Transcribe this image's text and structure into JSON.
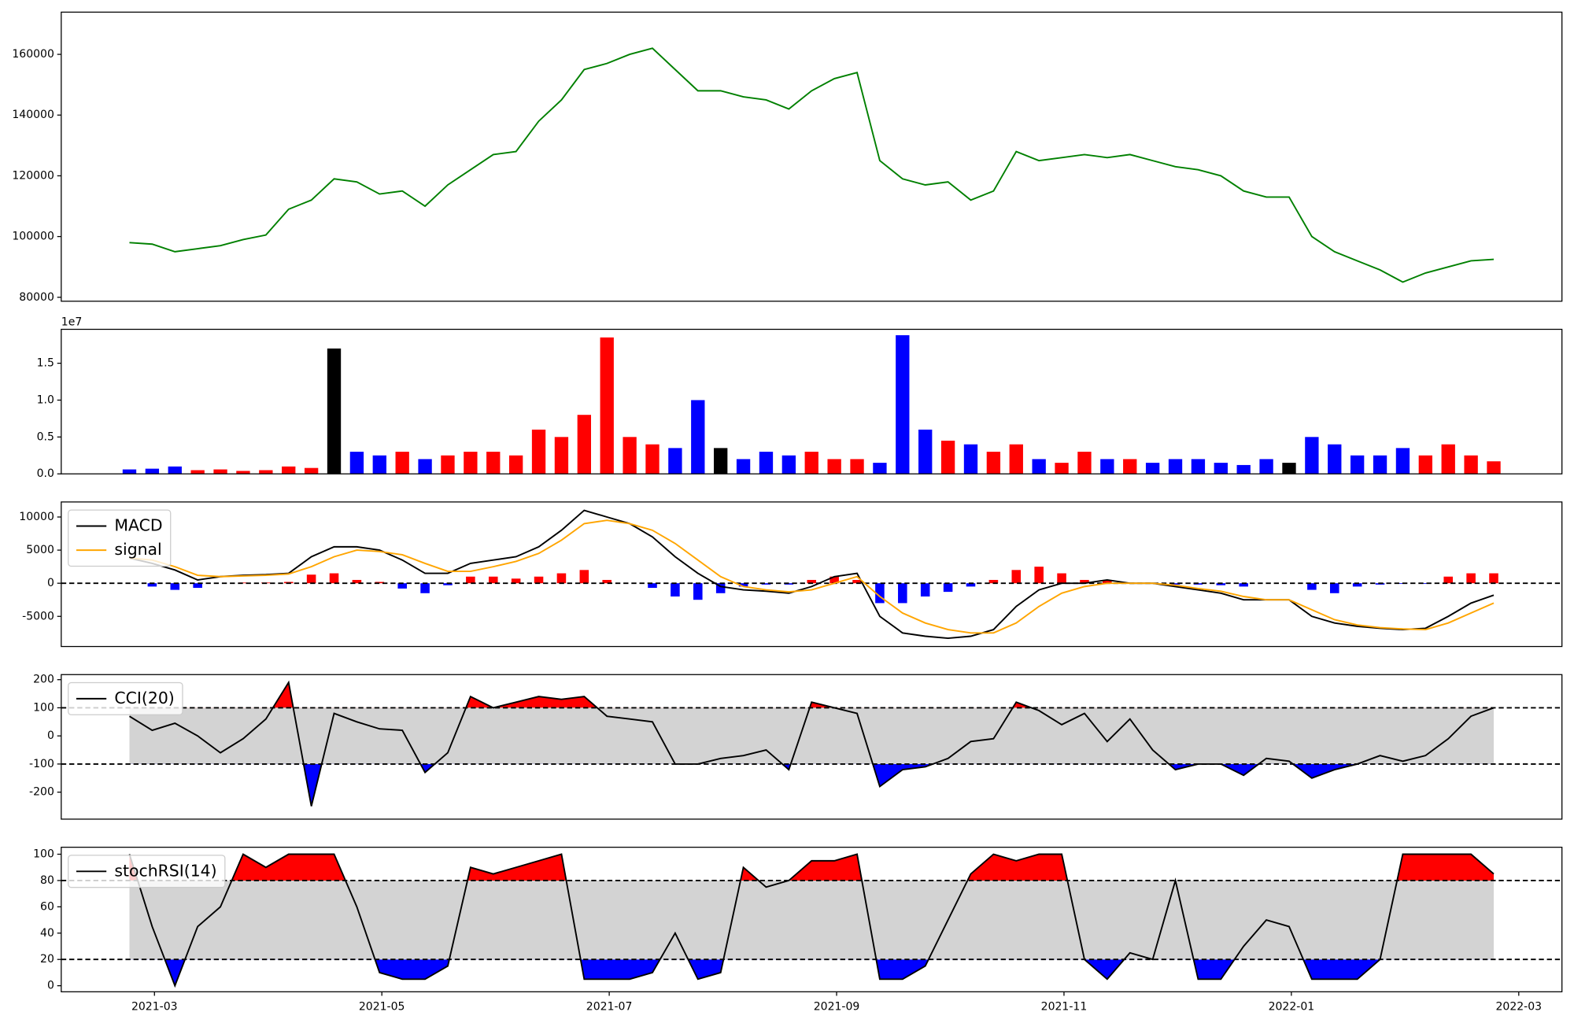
{
  "chart_data": [
    {
      "type": "line",
      "x": [
        2.78,
        2.98,
        3.18,
        3.38,
        3.58,
        3.78,
        3.98,
        4.18,
        4.38,
        4.58,
        4.78,
        4.98,
        5.18,
        5.38,
        5.58,
        5.78,
        5.98,
        6.18,
        6.38,
        6.58,
        6.78,
        6.98,
        7.18,
        7.38,
        7.58,
        7.78,
        7.98,
        8.18,
        8.38,
        8.58,
        8.78,
        8.98,
        9.18,
        9.38,
        9.58,
        9.78,
        9.98,
        10.18,
        10.38,
        10.58,
        10.78,
        10.98,
        11.18,
        11.38,
        11.58,
        11.78,
        11.98,
        12.18,
        12.38,
        12.58,
        12.78,
        12.98,
        13.18,
        13.38,
        13.58,
        13.78,
        13.98,
        14.18,
        14.38,
        14.58,
        14.78
      ],
      "series": [
        {
          "color": "green",
          "values": [
            98000,
            97500,
            95000,
            96000,
            97000,
            99000,
            100500,
            109000,
            112000,
            119000,
            118000,
            114000,
            115000,
            110000,
            117000,
            122000,
            127000,
            128000,
            138000,
            145000,
            155000,
            157000,
            160000,
            162000,
            155000,
            148000,
            148000,
            146000,
            145000,
            142000,
            148000,
            152000,
            154000,
            125000,
            119000,
            117000,
            118000,
            112000,
            115000,
            128000,
            125000,
            126000,
            127000,
            126000,
            127000,
            125000,
            123000,
            122000,
            120000,
            115000,
            113000,
            113000,
            100000,
            95000,
            92000,
            89000,
            85000,
            88000,
            90000,
            92000,
            92500
          ]
        }
      ],
      "xlim": [
        2.18,
        15.38
      ],
      "ylim": [
        78700,
        173900
      ],
      "yticks": [
        80000,
        100000,
        120000,
        140000,
        160000
      ]
    },
    {
      "type": "bar",
      "x": [
        2.78,
        2.98,
        3.18,
        3.38,
        3.58,
        3.78,
        3.98,
        4.18,
        4.38,
        4.58,
        4.78,
        4.98,
        5.18,
        5.38,
        5.58,
        5.78,
        5.98,
        6.18,
        6.38,
        6.58,
        6.78,
        6.98,
        7.18,
        7.38,
        7.58,
        7.78,
        7.98,
        8.18,
        8.38,
        8.58,
        8.78,
        8.98,
        9.18,
        9.38,
        9.58,
        9.78,
        9.98,
        10.18,
        10.38,
        10.58,
        10.78,
        10.98,
        11.18,
        11.38,
        11.58,
        11.78,
        11.98,
        12.18,
        12.38,
        12.58,
        12.78,
        12.98,
        13.18,
        13.38,
        13.58,
        13.78,
        13.98,
        14.18,
        14.38,
        14.58,
        14.78
      ],
      "values": [
        0.06,
        0.07,
        0.1,
        0.05,
        0.06,
        0.04,
        0.05,
        0.1,
        0.08,
        1.7,
        0.3,
        0.25,
        0.3,
        0.2,
        0.25,
        0.3,
        0.3,
        0.25,
        0.6,
        0.5,
        0.8,
        1.85,
        0.5,
        0.4,
        0.35,
        1.0,
        0.35,
        0.2,
        0.3,
        0.25,
        0.3,
        0.2,
        0.2,
        0.15,
        1.88,
        0.6,
        0.45,
        0.4,
        0.3,
        0.4,
        0.2,
        0.15,
        0.3,
        0.2,
        0.2,
        0.15,
        0.2,
        0.2,
        0.15,
        0.12,
        0.2,
        0.15,
        0.5,
        0.4,
        0.25,
        0.25,
        0.35,
        0.25,
        0.4,
        0.25,
        0.17
      ],
      "colors": [
        "blue",
        "blue",
        "blue",
        "red",
        "red",
        "red",
        "red",
        "red",
        "red",
        "black",
        "blue",
        "blue",
        "red",
        "blue",
        "red",
        "red",
        "red",
        "red",
        "red",
        "red",
        "red",
        "red",
        "red",
        "red",
        "blue",
        "blue",
        "black",
        "blue",
        "blue",
        "blue",
        "red",
        "red",
        "red",
        "blue",
        "blue",
        "blue",
        "red",
        "blue",
        "red",
        "red",
        "blue",
        "red",
        "red",
        "blue",
        "red",
        "blue",
        "blue",
        "blue",
        "blue",
        "blue",
        "blue",
        "black",
        "blue",
        "blue",
        "blue",
        "blue",
        "blue",
        "red",
        "red",
        "red",
        "red"
      ],
      "xlim": [
        2.18,
        15.38
      ],
      "ylim": [
        0,
        1.96
      ],
      "yticks": [
        {
          "value": 0,
          "label": "0.0"
        },
        0.5,
        {
          "value": 1,
          "label": "1.0"
        },
        1.5
      ],
      "y_offset_label": "1e7"
    },
    {
      "type": "macd",
      "x": [
        2.78,
        2.98,
        3.18,
        3.38,
        3.58,
        3.78,
        3.98,
        4.18,
        4.38,
        4.58,
        4.78,
        4.98,
        5.18,
        5.38,
        5.58,
        5.78,
        5.98,
        6.18,
        6.38,
        6.58,
        6.78,
        6.98,
        7.18,
        7.38,
        7.58,
        7.78,
        7.98,
        8.18,
        8.38,
        8.58,
        8.78,
        8.98,
        9.18,
        9.38,
        9.58,
        9.78,
        9.98,
        10.18,
        10.38,
        10.58,
        10.78,
        10.98,
        11.18,
        11.38,
        11.58,
        11.78,
        11.98,
        12.18,
        12.38,
        12.58,
        12.78,
        12.98,
        13.18,
        13.38,
        13.58,
        13.78,
        13.98,
        14.18,
        14.38,
        14.58,
        14.78
      ],
      "series": [
        {
          "name": "MACD",
          "color": "black",
          "values": [
            3800,
            3000,
            2000,
            500,
            1000,
            1200,
            1300,
            1500,
            4000,
            5500,
            5500,
            5000,
            3500,
            1500,
            1500,
            3000,
            3500,
            4000,
            5500,
            8000,
            11000,
            10000,
            9000,
            7000,
            4000,
            1500,
            -500,
            -1000,
            -1200,
            -1500,
            -500,
            1000,
            1500,
            -5000,
            -7500,
            -8000,
            -8300,
            -8000,
            -7000,
            -3500,
            -1000,
            0,
            0,
            500,
            0,
            0,
            -500,
            -1000,
            -1500,
            -2500,
            -2500,
            -2500,
            -5000,
            -6000,
            -6500,
            -6800,
            -7000,
            -6800,
            -5000,
            -3000,
            -1800
          ]
        },
        {
          "name": "signal",
          "color": "orange",
          "values": [
            3800,
            3500,
            2500,
            1200,
            1000,
            1100,
            1200,
            1400,
            2500,
            4000,
            5000,
            4800,
            4300,
            3000,
            1800,
            1800,
            2500,
            3300,
            4500,
            6500,
            9000,
            9500,
            9000,
            8000,
            6000,
            3500,
            1000,
            -500,
            -1000,
            -1300,
            -1000,
            0,
            1000,
            -2000,
            -4500,
            -6000,
            -7000,
            -7500,
            -7500,
            -6000,
            -3500,
            -1500,
            -500,
            0,
            0,
            0,
            -300,
            -800,
            -1200,
            -2000,
            -2500,
            -2500,
            -4000,
            -5500,
            -6300,
            -6700,
            -6900,
            -7000,
            -6000,
            -4500,
            -3000
          ]
        }
      ],
      "histogram": {
        "positive_color": "red",
        "negative_color": "blue",
        "values": [
          0,
          -500,
          -1000,
          -700,
          0,
          100,
          100,
          200,
          1300,
          1500,
          500,
          200,
          -800,
          -1500,
          -300,
          1000,
          1000,
          700,
          1000,
          1500,
          2000,
          500,
          0,
          -700,
          -2000,
          -2500,
          -1500,
          -500,
          -200,
          -200,
          500,
          1000,
          500,
          -3000,
          -3000,
          -2000,
          -1300,
          -500,
          500,
          2000,
          2500,
          1500,
          500,
          500,
          0,
          0,
          -200,
          -200,
          -300,
          -500,
          0,
          0,
          -1000,
          -1500,
          -500,
          -200,
          -100,
          -100,
          1000,
          1500,
          1500
        ]
      },
      "hlines": [
        0
      ],
      "xlim": [
        2.18,
        15.38
      ],
      "ylim": [
        -9550,
        12270
      ],
      "yticks": [
        -5000,
        0,
        5000,
        10000
      ],
      "legend": "upper left"
    },
    {
      "type": "band",
      "x": [
        2.78,
        2.98,
        3.18,
        3.38,
        3.58,
        3.78,
        3.98,
        4.18,
        4.38,
        4.58,
        4.78,
        4.98,
        5.18,
        5.38,
        5.58,
        5.78,
        5.98,
        6.18,
        6.38,
        6.58,
        6.78,
        6.98,
        7.18,
        7.38,
        7.58,
        7.78,
        7.98,
        8.18,
        8.38,
        8.58,
        8.78,
        8.98,
        9.18,
        9.38,
        9.58,
        9.78,
        9.98,
        10.18,
        10.38,
        10.58,
        10.78,
        10.98,
        11.18,
        11.38,
        11.58,
        11.78,
        11.98,
        12.18,
        12.38,
        12.58,
        12.78,
        12.98,
        13.18,
        13.38,
        13.58,
        13.78,
        13.98,
        14.18,
        14.38,
        14.58,
        14.78
      ],
      "series": [
        {
          "name": "CCI(20)",
          "color": "black",
          "values": [
            70,
            20,
            45,
            0,
            -60,
            -10,
            60,
            190,
            -250,
            80,
            50,
            25,
            20,
            -130,
            -60,
            140,
            100,
            120,
            140,
            130,
            140,
            70,
            60,
            50,
            -100,
            -100,
            -80,
            -70,
            -50,
            -120,
            120,
            100,
            80,
            -180,
            -120,
            -110,
            -80,
            -20,
            -10,
            120,
            90,
            40,
            80,
            -20,
            60,
            -50,
            -120,
            -100,
            -100,
            -140,
            -80,
            -90,
            -150,
            -120,
            -100,
            -70,
            -90,
            -70,
            -10,
            70,
            100
          ]
        }
      ],
      "thresholds": [
        -100,
        100
      ],
      "band_color": "lightgray",
      "upper_fill": "red",
      "lower_fill": "blue",
      "xlim": [
        2.18,
        15.38
      ],
      "ylim": [
        -296,
        218
      ],
      "yticks": [
        -200,
        -100,
        0,
        100,
        200
      ],
      "legend": "upper left"
    },
    {
      "type": "band",
      "x": [
        2.78,
        2.98,
        3.18,
        3.38,
        3.58,
        3.78,
        3.98,
        4.18,
        4.38,
        4.58,
        4.78,
        4.98,
        5.18,
        5.38,
        5.58,
        5.78,
        5.98,
        6.18,
        6.38,
        6.58,
        6.78,
        6.98,
        7.18,
        7.38,
        7.58,
        7.78,
        7.98,
        8.18,
        8.38,
        8.58,
        8.78,
        8.98,
        9.18,
        9.38,
        9.58,
        9.78,
        9.98,
        10.18,
        10.38,
        10.58,
        10.78,
        10.98,
        11.18,
        11.38,
        11.58,
        11.78,
        11.98,
        12.18,
        12.38,
        12.58,
        12.78,
        12.98,
        13.18,
        13.38,
        13.58,
        13.78,
        13.98,
        14.18,
        14.38,
        14.58,
        14.78
      ],
      "series": [
        {
          "name": "stochRSI(14)",
          "color": "black",
          "values": [
            100,
            45,
            0,
            45,
            60,
            100,
            90,
            100,
            100,
            100,
            60,
            10,
            5,
            5,
            15,
            90,
            85,
            90,
            95,
            100,
            5,
            5,
            5,
            10,
            40,
            5,
            10,
            90,
            75,
            80,
            95,
            95,
            100,
            5,
            5,
            15,
            50,
            85,
            100,
            95,
            100,
            100,
            20,
            5,
            25,
            20,
            80,
            5,
            5,
            30,
            50,
            45,
            5,
            5,
            5,
            20,
            100,
            100,
            100,
            100,
            85
          ]
        }
      ],
      "thresholds": [
        20,
        80
      ],
      "band_color": "lightgray",
      "upper_fill": "red",
      "lower_fill": "blue",
      "xlim": [
        2.18,
        15.38
      ],
      "ylim": [
        -4.6,
        105.3
      ],
      "yticks": [
        0,
        20,
        40,
        60,
        80,
        100
      ],
      "legend": "upper left",
      "xticks": [
        {
          "value": 3,
          "label": "2021-03"
        },
        {
          "value": 5,
          "label": "2021-05"
        },
        {
          "value": 7,
          "label": "2021-07"
        },
        {
          "value": 9,
          "label": "2021-09"
        },
        {
          "value": 11,
          "label": "2021-11"
        },
        {
          "value": 13,
          "label": "2022-01"
        },
        {
          "value": 15,
          "label": "2022-03"
        }
      ]
    }
  ]
}
